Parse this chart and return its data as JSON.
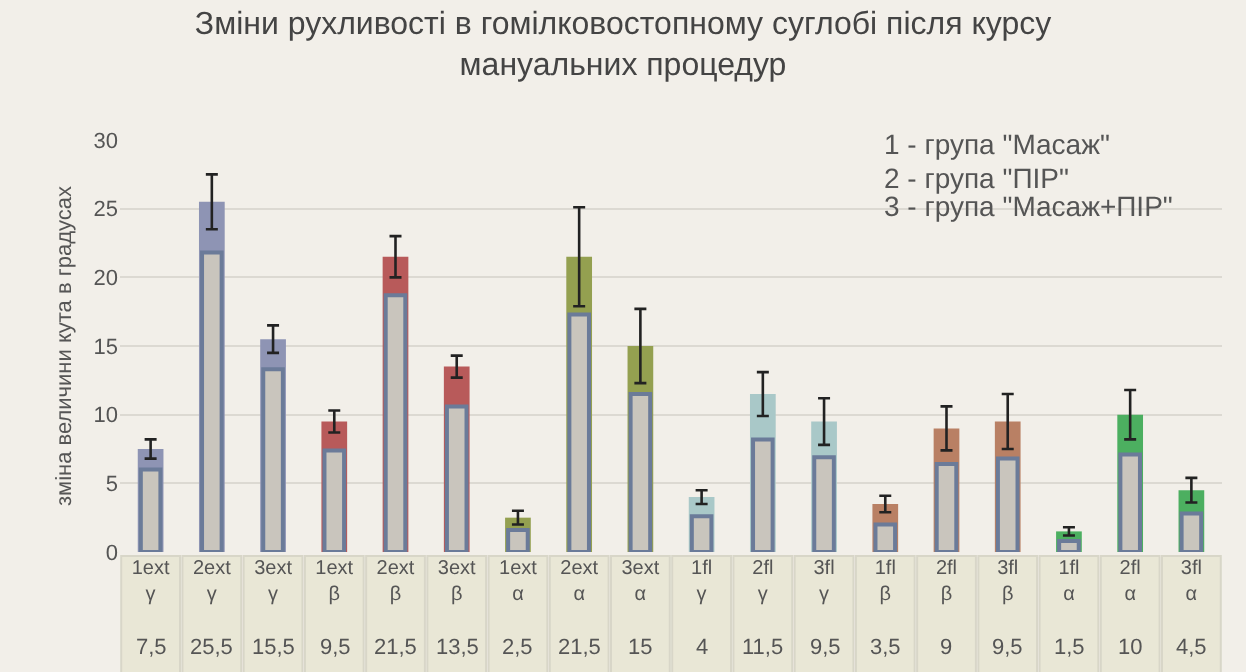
{
  "chart_data": {
    "type": "bar",
    "title": "Зміни рухливості в гомілковостопному суглобі після курсу мануальних процедур",
    "ylabel": "зміна величини кута в градусах",
    "categories": [
      "1ext γ",
      "2ext γ",
      "3ext γ",
      "1ext β",
      "2ext β",
      "3ext β",
      "1ext α",
      "2ext α",
      "3ext α",
      "1fl γ",
      "2fl γ",
      "3fl γ",
      "1fl β",
      "2fl β",
      "3fl β",
      "1fl α",
      "2fl α",
      "3fl α"
    ],
    "series": [
      {
        "colors": [
          "#8e94b4",
          "#8e94b4",
          "#8e94b4",
          "#b85a5a",
          "#b85a5a",
          "#b85a5a",
          "#94a050",
          "#94a050",
          "#94a050",
          "#a9c8c8",
          "#a9c8c8",
          "#a9c8c8",
          "#b98064",
          "#b98064",
          "#b98064",
          "#4caf60",
          "#4caf60",
          "#4caf60"
        ],
        "values": [
          7.5,
          25.5,
          15.5,
          9.5,
          21.5,
          13.5,
          2.5,
          21.5,
          15,
          4,
          11.5,
          9.5,
          3.5,
          9,
          9.5,
          1.5,
          10,
          4.5
        ],
        "value_labels": [
          "7,5",
          "25,5",
          "15,5",
          "9,5",
          "21,5",
          "13,5",
          "2,5",
          "21,5",
          "15",
          "4",
          "11,5",
          "9,5",
          "3,5",
          "9",
          "9,5",
          "1,5",
          "10",
          "4,5"
        ],
        "errors": [
          0.7,
          2,
          1,
          0.8,
          1.5,
          0.8,
          0.5,
          3.6,
          2.7,
          0.5,
          1.6,
          1.7,
          0.6,
          1.6,
          2,
          0.3,
          1.8,
          0.9
        ]
      },
      {
        "color": "#c9c5bd",
        "values": [
          6,
          21.8,
          13.3,
          7.4,
          18.7,
          10.6,
          1.6,
          17.3,
          11.5,
          2.6,
          8.2,
          6.9,
          2,
          6.4,
          6.8,
          0.8,
          7.1,
          2.8
        ]
      }
    ],
    "ylim": [
      0,
      30
    ],
    "yticks": [
      0,
      5,
      10,
      15,
      20,
      25,
      30
    ],
    "grid": "y",
    "annotations": [
      "1 - група \"Масаж\"",
      "2 - група \"ПІР\"",
      "3 - група \"Масаж+ПІР\""
    ]
  }
}
